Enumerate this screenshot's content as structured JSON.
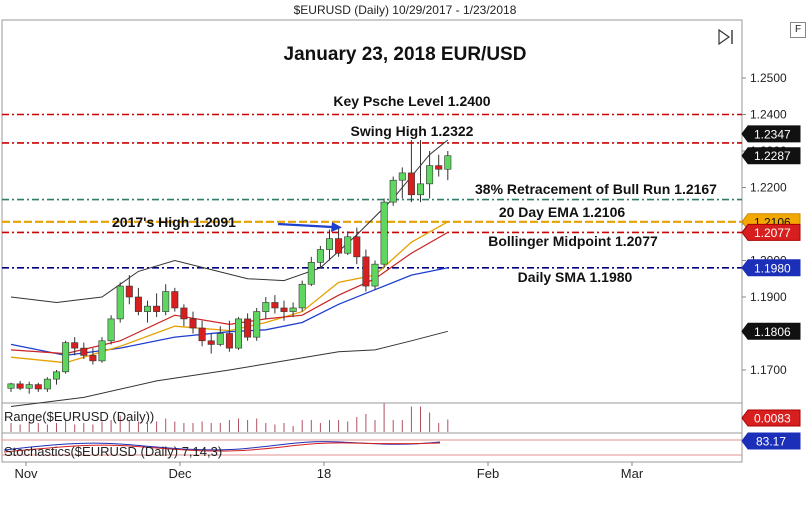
{
  "header": {
    "window_title": "$EURUSD (Daily)  10/29/2017 - 1/23/2018",
    "f_button": "F"
  },
  "chart_data": {
    "type": "candlestick",
    "title": "January 23, 2018 EUR/USD",
    "y_ticks": [
      "1.2500",
      "1.2400",
      "1.2300",
      "1.2200",
      "1.2100",
      "1.2000",
      "1.1900",
      "1.1800",
      "1.1700"
    ],
    "ylim": [
      1.1635,
      1.2585
    ],
    "x_tick_labels": [
      "Nov",
      "Dec",
      "18",
      "Feb",
      "Mar"
    ],
    "price_badges": [
      {
        "label": "1.2347",
        "value": 1.2347,
        "style": "dark"
      },
      {
        "label": "1.2287",
        "value": 1.2287,
        "style": "dark"
      },
      {
        "label": "1.2106",
        "value": 1.2106,
        "style": "orange"
      },
      {
        "label": "1.2077",
        "value": 1.2077,
        "style": "red"
      },
      {
        "label": "1.1980",
        "value": 1.198,
        "style": "blue"
      },
      {
        "label": "1.1806",
        "value": 1.1806,
        "style": "dark"
      }
    ],
    "levels": [
      {
        "label": "Key Psche Level 1.2400",
        "value": 1.24,
        "color": "#cc0000"
      },
      {
        "label": "Swing High 1.2322",
        "value": 1.2322,
        "color": "#cc0000"
      },
      {
        "label": "38% Retracement of Bull Run 1.2167",
        "value": 1.2167,
        "color": "#2e7d6b"
      },
      {
        "label": "20 Day EMA 1.2106",
        "value": 1.2106,
        "color": "#e6a000"
      },
      {
        "label": "Bollinger Midpoint 1.2077",
        "value": 1.2077,
        "color": "#cc0000"
      },
      {
        "label": "Daily SMA 1.1980",
        "value": 1.198,
        "color": "#000080"
      }
    ],
    "annotation": "2017's High 1.2091",
    "candles": [
      [
        1.165,
        1.1665,
        1.164,
        1.1662
      ],
      [
        1.1662,
        1.167,
        1.1645,
        1.165
      ],
      [
        1.165,
        1.1668,
        1.1635,
        1.166
      ],
      [
        1.166,
        1.1665,
        1.164,
        1.1648
      ],
      [
        1.1648,
        1.168,
        1.164,
        1.1675
      ],
      [
        1.1675,
        1.17,
        1.166,
        1.1695
      ],
      [
        1.1695,
        1.178,
        1.169,
        1.1775
      ],
      [
        1.1775,
        1.179,
        1.174,
        1.176
      ],
      [
        1.176,
        1.1775,
        1.173,
        1.174
      ],
      [
        1.174,
        1.176,
        1.1715,
        1.1725
      ],
      [
        1.1725,
        1.179,
        1.172,
        1.178
      ],
      [
        1.178,
        1.185,
        1.177,
        1.184
      ],
      [
        1.184,
        1.194,
        1.183,
        1.193
      ],
      [
        1.193,
        1.196,
        1.188,
        1.19
      ],
      [
        1.19,
        1.1925,
        1.185,
        1.186
      ],
      [
        1.186,
        1.189,
        1.183,
        1.1875
      ],
      [
        1.1875,
        1.191,
        1.1845,
        1.186
      ],
      [
        1.186,
        1.1935,
        1.185,
        1.1915
      ],
      [
        1.1915,
        1.1925,
        1.186,
        1.187
      ],
      [
        1.187,
        1.188,
        1.182,
        1.184
      ],
      [
        1.184,
        1.186,
        1.18,
        1.1815
      ],
      [
        1.1815,
        1.1835,
        1.1765,
        1.178
      ],
      [
        1.178,
        1.18,
        1.1745,
        1.177
      ],
      [
        1.177,
        1.182,
        1.1765,
        1.18
      ],
      [
        1.18,
        1.1835,
        1.175,
        1.176
      ],
      [
        1.176,
        1.1845,
        1.1755,
        1.184
      ],
      [
        1.184,
        1.1855,
        1.178,
        1.179
      ],
      [
        1.179,
        1.187,
        1.178,
        1.186
      ],
      [
        1.186,
        1.19,
        1.184,
        1.1885
      ],
      [
        1.1885,
        1.1905,
        1.1855,
        1.187
      ],
      [
        1.187,
        1.189,
        1.1835,
        1.186
      ],
      [
        1.186,
        1.1885,
        1.1845,
        1.187
      ],
      [
        1.187,
        1.1945,
        1.186,
        1.1935
      ],
      [
        1.1935,
        1.201,
        1.193,
        1.1995
      ],
      [
        1.1995,
        1.204,
        1.198,
        1.203
      ],
      [
        1.203,
        1.2085,
        1.2,
        1.206
      ],
      [
        1.206,
        1.209,
        1.201,
        1.202
      ],
      [
        1.202,
        1.208,
        1.2015,
        1.2065
      ],
      [
        1.2065,
        1.209,
        1.199,
        1.201
      ],
      [
        1.201,
        1.203,
        1.1915,
        1.193
      ],
      [
        1.193,
        1.2,
        1.192,
        1.199
      ],
      [
        1.199,
        1.217,
        1.198,
        1.216
      ],
      [
        1.216,
        1.223,
        1.215,
        1.222
      ],
      [
        1.222,
        1.2255,
        1.217,
        1.224
      ],
      [
        1.224,
        1.233,
        1.216,
        1.218
      ],
      [
        1.218,
        1.233,
        1.216,
        1.221
      ],
      [
        1.221,
        1.23,
        1.217,
        1.226
      ],
      [
        1.226,
        1.229,
        1.223,
        1.225
      ],
      [
        1.225,
        1.23,
        1.222,
        1.2287
      ]
    ],
    "bollinger_upper": [
      [
        0,
        1.19
      ],
      [
        5,
        1.1885
      ],
      [
        10,
        1.19
      ],
      [
        14,
        1.197
      ],
      [
        18,
        1.2
      ],
      [
        22,
        1.1975
      ],
      [
        26,
        1.195
      ],
      [
        30,
        1.1945
      ],
      [
        34,
        1.198
      ],
      [
        38,
        1.207
      ],
      [
        42,
        1.217
      ],
      [
        46,
        1.229
      ],
      [
        48,
        1.233
      ]
    ],
    "bollinger_lower": [
      [
        0,
        1.16
      ],
      [
        8,
        1.1625
      ],
      [
        16,
        1.167
      ],
      [
        24,
        1.17
      ],
      [
        30,
        1.1725
      ],
      [
        36,
        1.175
      ],
      [
        40,
        1.1755
      ],
      [
        44,
        1.178
      ],
      [
        48,
        1.1806
      ]
    ],
    "sma": [
      [
        0,
        1.177
      ],
      [
        6,
        1.174
      ],
      [
        12,
        1.176
      ],
      [
        18,
        1.179
      ],
      [
        24,
        1.1805
      ],
      [
        28,
        1.181
      ],
      [
        32,
        1.183
      ],
      [
        36,
        1.188
      ],
      [
        40,
        1.192
      ],
      [
        44,
        1.196
      ],
      [
        48,
        1.198
      ]
    ],
    "ema": [
      [
        0,
        1.1735
      ],
      [
        6,
        1.172
      ],
      [
        12,
        1.1765
      ],
      [
        18,
        1.182
      ],
      [
        24,
        1.1808
      ],
      [
        28,
        1.183
      ],
      [
        32,
        1.186
      ],
      [
        36,
        1.194
      ],
      [
        40,
        1.196
      ],
      [
        44,
        1.205
      ],
      [
        48,
        1.2106
      ]
    ],
    "midpoint": [
      [
        0,
        1.1755
      ],
      [
        6,
        1.1745
      ],
      [
        12,
        1.178
      ],
      [
        18,
        1.185
      ],
      [
        24,
        1.1825
      ],
      [
        28,
        1.184
      ],
      [
        32,
        1.185
      ],
      [
        36,
        1.1905
      ],
      [
        40,
        1.195
      ],
      [
        44,
        1.202
      ],
      [
        48,
        1.2077
      ]
    ],
    "range_panel": {
      "label": "Range($EURUSD (Daily))",
      "badge": "0.0083",
      "values": [
        0.006,
        0.005,
        0.007,
        0.006,
        0.005,
        0.006,
        0.009,
        0.005,
        0.006,
        0.005,
        0.007,
        0.008,
        0.011,
        0.008,
        0.007,
        0.006,
        0.007,
        0.009,
        0.007,
        0.006,
        0.006,
        0.007,
        0.006,
        0.006,
        0.008,
        0.009,
        0.008,
        0.009,
        0.006,
        0.005,
        0.006,
        0.004,
        0.008,
        0.008,
        0.006,
        0.008,
        0.008,
        0.007,
        0.01,
        0.012,
        0.008,
        0.019,
        0.008,
        0.008,
        0.017,
        0.017,
        0.013,
        0.006,
        0.0083
      ]
    },
    "stochastics_panel": {
      "label": "Stochastics($EURUSD (Daily) 7,14,3)",
      "badge": "83.17"
    }
  }
}
